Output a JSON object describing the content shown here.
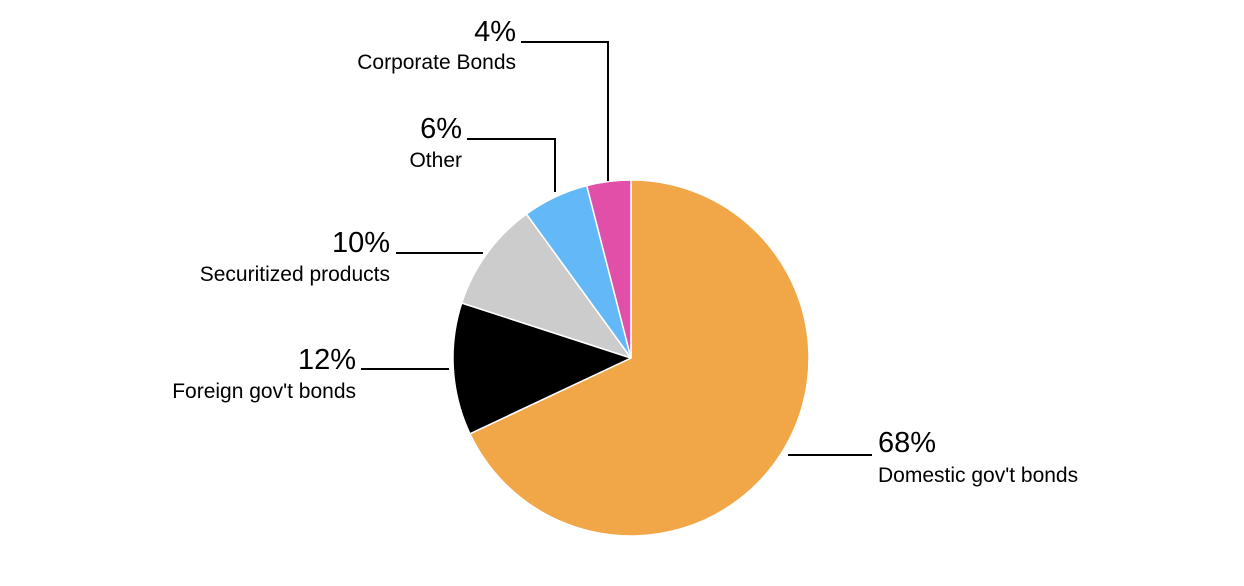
{
  "chart_data": {
    "type": "pie",
    "title": "",
    "slices": [
      {
        "label": "Domestic gov't bonds",
        "value": 68,
        "value_label": "68%",
        "color": "#F1A648"
      },
      {
        "label": "Foreign gov't bonds",
        "value": 12,
        "value_label": "12%",
        "color": "#000000"
      },
      {
        "label": "Securitized products",
        "value": 10,
        "value_label": "10%",
        "color": "#CCCCCC"
      },
      {
        "label": "Other",
        "value": 6,
        "value_label": "6%",
        "color": "#63B9F7"
      },
      {
        "label": "Corporate Bonds",
        "value": 4,
        "value_label": "4%",
        "color": "#E24FA8"
      }
    ],
    "start_angle": "12 o'clock",
    "direction": "clockwise",
    "labels": "outside with leader lines",
    "legend": "none",
    "slice_border_color": "#FFFFFF"
  }
}
